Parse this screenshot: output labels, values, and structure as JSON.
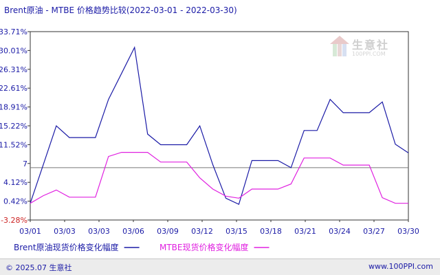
{
  "title": "Brent原油 - MTBE 价格趋势比较(2022-03-01 - 2022-03-30)",
  "footer": {
    "copyright": "© 2025.07 生意社",
    "url": "www.100PPI.com"
  },
  "watermark": {
    "name": "生意社",
    "url": "100PPI.COM"
  },
  "colors": {
    "brent": "#1a1aa6",
    "mtbe": "#e020e0",
    "axis_text": "#1a1aa6",
    "negative_label": "#cc2222"
  },
  "chart_data": {
    "type": "line",
    "title": "Brent原油 - MTBE 价格趋势比较(2022-03-01 - 2022-03-30)",
    "xlabel": "",
    "ylabel": "",
    "ylim": [
      -3.28,
      33.71
    ],
    "ytick_labels": [
      "33.71%",
      "30.01%",
      "26.31%",
      "22.61%",
      "18.91%",
      "15.22%",
      "11.52%",
      "7",
      "4.12%",
      "0.42%",
      "-3.28%"
    ],
    "xtick_labels": [
      "03/01",
      "03/03",
      "03/03",
      "03/06",
      "03/09",
      "03/12",
      "03/15",
      "03/18",
      "03/21",
      "03/24",
      "03/27",
      "03/30"
    ],
    "x": [
      "03/01",
      "03/02",
      "03/03",
      "03/04",
      "03/05",
      "03/06",
      "03/07",
      "03/08",
      "03/09",
      "03/10",
      "03/11",
      "03/12",
      "03/13",
      "03/14",
      "03/15",
      "03/16",
      "03/17",
      "03/18",
      "03/19",
      "03/20",
      "03/21",
      "03/22",
      "03/23",
      "03/24",
      "03/25",
      "03/26",
      "03/27",
      "03/28",
      "03/29",
      "03/30"
    ],
    "grid": "horizontal reference line at 7",
    "legend_position": "bottom",
    "series": [
      {
        "name": "Brent原油现货价格变化幅度",
        "values": [
          0.0,
          7.6,
          15.2,
          12.9,
          12.9,
          12.9,
          20.4,
          25.5,
          30.6,
          13.6,
          11.5,
          11.5,
          11.5,
          15.2,
          7.6,
          1.0,
          -0.2,
          8.4,
          8.4,
          8.4,
          7.0,
          14.3,
          14.3,
          20.4,
          17.8,
          17.8,
          17.8,
          19.9,
          11.6,
          9.9
        ]
      },
      {
        "name": "MTBE现货价格变化幅度",
        "values": [
          0.0,
          1.5,
          2.6,
          1.2,
          1.2,
          1.2,
          9.2,
          10.0,
          10.0,
          10.0,
          8.1,
          8.1,
          8.1,
          5.0,
          2.8,
          1.4,
          1.0,
          2.8,
          2.8,
          2.8,
          3.8,
          8.9,
          8.9,
          8.9,
          7.5,
          7.5,
          7.5,
          1.1,
          0.0,
          0.0
        ]
      }
    ]
  }
}
